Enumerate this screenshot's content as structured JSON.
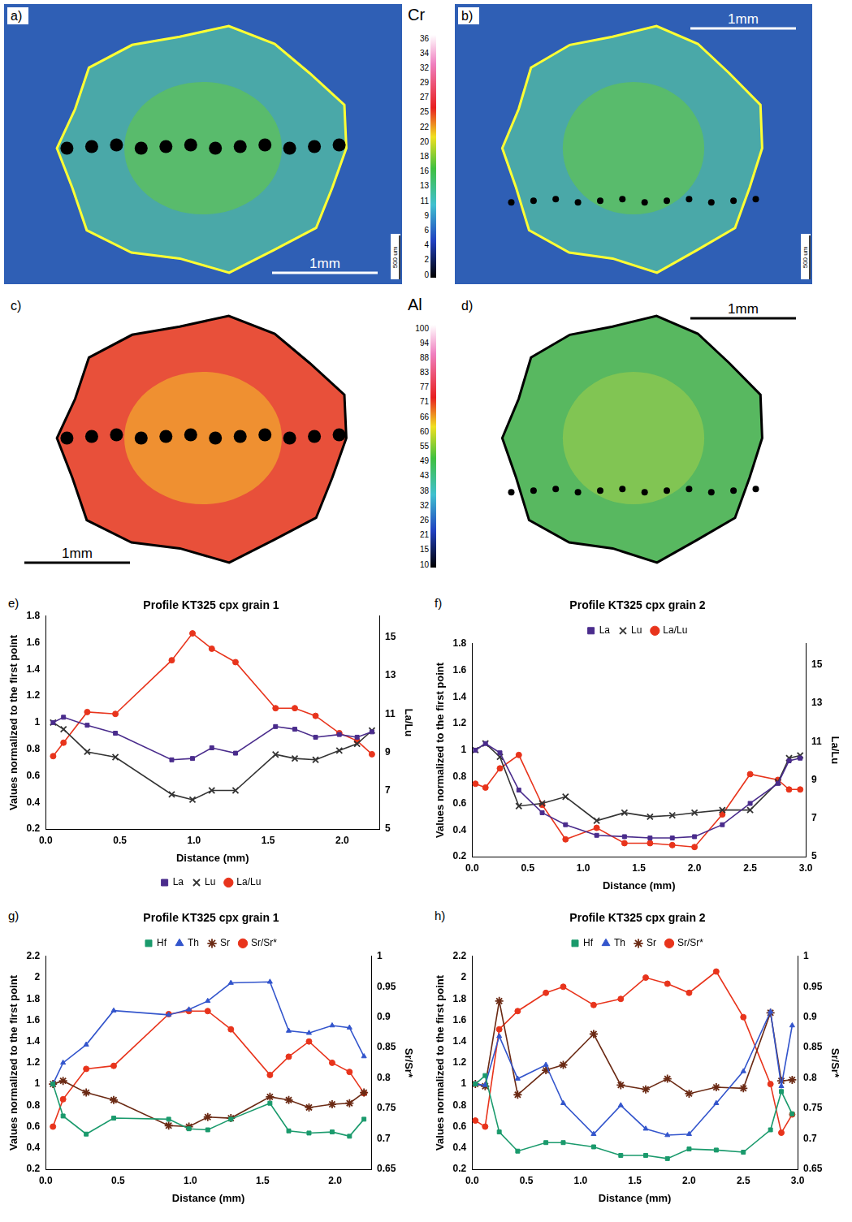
{
  "maps": {
    "panels": [
      {
        "letter": "a)",
        "scale_bar": "1mm",
        "side_label": "500 um",
        "color": "#ffff33"
      },
      {
        "letter": "b)",
        "scale_bar": "1mm",
        "side_label": "500 um",
        "color": "#ffff33"
      },
      {
        "letter": "c)",
        "scale_bar": "1mm",
        "color": "#000000"
      },
      {
        "letter": "d)",
        "scale_bar": "1mm",
        "color": "#000000"
      }
    ],
    "colorbars": [
      {
        "element": "Cr",
        "ticks": [
          36,
          34,
          32,
          29,
          27,
          25,
          22,
          20,
          18,
          16,
          13,
          11,
          9,
          6,
          4,
          2,
          0
        ]
      },
      {
        "element": "Al",
        "ticks": [
          100,
          94,
          88,
          83,
          77,
          71,
          66,
          60,
          55,
          49,
          43,
          38,
          32,
          26,
          21,
          15,
          10
        ]
      }
    ]
  },
  "chart_data": [
    {
      "type": "line",
      "letter": "e)",
      "title": "Profile KT325 cpx grain 1",
      "x_label": "Distance (mm)",
      "y_label": "Values normalized to the first point",
      "y2_label": "La/Lu",
      "x": [
        0.05,
        0.12,
        0.28,
        0.47,
        0.85,
        0.99,
        1.12,
        1.28,
        1.55,
        1.68,
        1.82,
        1.98,
        2.1,
        2.2
      ],
      "xlim": [
        0,
        2.25
      ],
      "xticks": [
        {
          "value": 0,
          "label": "0.0"
        },
        {
          "value": 0.5,
          "label": "0.5"
        },
        {
          "value": 1,
          "label": "1.0"
        },
        {
          "value": 1.5,
          "label": "1.5"
        },
        {
          "value": 2,
          "label": "2.0"
        }
      ],
      "ylim": [
        0.2,
        1.8
      ],
      "yticks": [
        0.2,
        0.4,
        0.6,
        0.8,
        1,
        1.2,
        1.4,
        1.6,
        1.8
      ],
      "y2lim": [
        5,
        16.1
      ],
      "y2ticks": [
        5,
        7,
        9,
        11,
        13,
        15
      ],
      "grid": false,
      "legend": "bottom",
      "series": [
        {
          "name": "La",
          "color": "#4a2c8c",
          "marker": "square",
          "values": [
            1.0,
            1.04,
            0.98,
            0.92,
            0.72,
            0.73,
            0.81,
            0.77,
            0.97,
            0.95,
            0.89,
            0.91,
            0.89,
            0.93
          ]
        },
        {
          "name": "Lu",
          "color": "#333333",
          "marker": "x",
          "values": [
            1.0,
            0.95,
            0.78,
            0.74,
            0.46,
            0.42,
            0.49,
            0.49,
            0.76,
            0.73,
            0.72,
            0.79,
            0.84,
            0.94
          ]
        },
        {
          "name": "La/Lu",
          "color": "#e8341c",
          "marker": "circle",
          "axis": "y2",
          "values": [
            8.8,
            9.5,
            11.1,
            11.0,
            13.8,
            15.2,
            14.4,
            13.7,
            11.3,
            11.3,
            10.9,
            10.0,
            9.6,
            8.9
          ]
        }
      ]
    },
    {
      "type": "line",
      "letter": "f)",
      "title": "Profile KT325 cpx grain 2",
      "x_label": "Distance (mm)",
      "y_label": "Values normalized to the first point",
      "y2_label": "La/Lu",
      "x": [
        0.03,
        0.12,
        0.25,
        0.42,
        0.63,
        0.84,
        1.12,
        1.37,
        1.6,
        1.8,
        2.0,
        2.25,
        2.5,
        2.75,
        2.85,
        2.95
      ],
      "xlim": [
        0,
        3.0
      ],
      "xticks": [
        {
          "value": 0,
          "label": "0.0"
        },
        {
          "value": 0.5,
          "label": "0.5"
        },
        {
          "value": 1,
          "label": "1.0"
        },
        {
          "value": 1.5,
          "label": "1.5"
        },
        {
          "value": 2,
          "label": "2.0"
        },
        {
          "value": 2.5,
          "label": "2.5"
        },
        {
          "value": 3,
          "label": "3.0"
        }
      ],
      "ylim": [
        0.2,
        1.8
      ],
      "yticks": [
        0.2,
        0.4,
        0.6,
        0.8,
        1,
        1.2,
        1.4,
        1.6,
        1.8
      ],
      "y2lim": [
        5,
        16.1
      ],
      "y2ticks": [
        5,
        7,
        9,
        11,
        13,
        15
      ],
      "grid": false,
      "legend": "top",
      "series": [
        {
          "name": "La",
          "color": "#4a2c8c",
          "marker": "square",
          "values": [
            1.0,
            1.05,
            0.98,
            0.7,
            0.53,
            0.44,
            0.36,
            0.35,
            0.34,
            0.34,
            0.35,
            0.44,
            0.6,
            0.75,
            0.92,
            0.94
          ]
        },
        {
          "name": "Lu",
          "color": "#333333",
          "marker": "x",
          "values": [
            1.0,
            1.05,
            0.95,
            0.58,
            0.6,
            0.65,
            0.47,
            0.53,
            0.5,
            0.51,
            0.53,
            0.55,
            0.55,
            0.76,
            0.94,
            0.96
          ]
        },
        {
          "name": "La/Lu",
          "color": "#e8341c",
          "marker": "circle",
          "axis": "y2",
          "values": [
            8.8,
            8.6,
            9.6,
            10.3,
            7.7,
            5.9,
            6.5,
            5.7,
            5.7,
            5.6,
            5.5,
            7.2,
            9.3,
            9.0,
            8.5,
            8.5
          ]
        }
      ]
    },
    {
      "type": "line",
      "letter": "g)",
      "title": "Profile KT325 cpx grain 1",
      "x_label": "Distance (mm)",
      "y_label": "Values normalized to the first point",
      "y2_label": "Sr/Sr*",
      "x": [
        0.05,
        0.12,
        0.28,
        0.47,
        0.85,
        0.99,
        1.12,
        1.28,
        1.55,
        1.68,
        1.82,
        1.98,
        2.1,
        2.2
      ],
      "xlim": [
        0,
        2.25
      ],
      "xticks": [
        {
          "value": 0,
          "label": "0.0"
        },
        {
          "value": 0.5,
          "label": "0.5"
        },
        {
          "value": 1,
          "label": "1.0"
        },
        {
          "value": 1.5,
          "label": "1.5"
        },
        {
          "value": 2,
          "label": "2.0"
        }
      ],
      "ylim": [
        0.2,
        2.2
      ],
      "yticks": [
        0.2,
        0.4,
        0.6,
        0.8,
        1,
        1.2,
        1.4,
        1.6,
        1.8,
        2,
        2.2
      ],
      "y2lim": [
        0.65,
        1
      ],
      "y2ticks": [
        0.65,
        0.7,
        0.75,
        0.8,
        0.85,
        0.9,
        0.95,
        1
      ],
      "grid": false,
      "legend": "top",
      "series": [
        {
          "name": "Hf",
          "color": "#1a9a6c",
          "marker": "square",
          "values": [
            1.0,
            0.7,
            0.53,
            0.68,
            0.67,
            0.58,
            0.57,
            0.67,
            0.82,
            0.56,
            0.54,
            0.55,
            0.51,
            0.67
          ]
        },
        {
          "name": "Th",
          "color": "#3355cc",
          "marker": "triangle",
          "values": [
            1.0,
            1.2,
            1.37,
            1.69,
            1.65,
            1.7,
            1.78,
            1.95,
            1.96,
            1.5,
            1.48,
            1.55,
            1.53,
            1.26
          ]
        },
        {
          "name": "Sr",
          "color": "#6b2a14",
          "marker": "star",
          "values": [
            1.0,
            1.03,
            0.92,
            0.85,
            0.61,
            0.6,
            0.69,
            0.68,
            0.88,
            0.85,
            0.78,
            0.81,
            0.82,
            0.92
          ]
        },
        {
          "name": "Sr/Sr*",
          "color": "#e8341c",
          "marker": "circle",
          "axis": "y2",
          "values": [
            0.72,
            0.765,
            0.815,
            0.82,
            0.905,
            0.91,
            0.91,
            0.88,
            0.805,
            0.835,
            0.86,
            0.825,
            0.81,
            0.775
          ]
        }
      ]
    },
    {
      "type": "line",
      "letter": "h)",
      "title": "Profile KT325 cpx grain 2",
      "x_label": "Distance (mm)",
      "y_label": "Values normalized to the first point",
      "y2_label": "Sr/Sr*",
      "x": [
        0.03,
        0.12,
        0.25,
        0.42,
        0.68,
        0.84,
        1.12,
        1.37,
        1.6,
        1.8,
        2.0,
        2.25,
        2.5,
        2.75,
        2.85,
        2.95
      ],
      "xlim": [
        0,
        3.0
      ],
      "xticks": [
        {
          "value": 0,
          "label": "0.0"
        },
        {
          "value": 0.5,
          "label": "0.5"
        },
        {
          "value": 1,
          "label": "1.0"
        },
        {
          "value": 1.5,
          "label": "1.5"
        },
        {
          "value": 2,
          "label": "2.0"
        },
        {
          "value": 2.5,
          "label": "2.5"
        },
        {
          "value": 3,
          "label": "3.0"
        }
      ],
      "ylim": [
        0.2,
        2.2
      ],
      "yticks": [
        0.2,
        0.4,
        0.6,
        0.8,
        1,
        1.2,
        1.4,
        1.6,
        1.8,
        2,
        2.2
      ],
      "y2lim": [
        0.65,
        1
      ],
      "y2ticks": [
        0.65,
        0.7,
        0.75,
        0.8,
        0.85,
        0.9,
        0.95,
        1
      ],
      "grid": false,
      "legend": "top",
      "series": [
        {
          "name": "Hf",
          "color": "#1a9a6c",
          "marker": "square",
          "values": [
            1.0,
            1.08,
            0.55,
            0.37,
            0.45,
            0.45,
            0.41,
            0.33,
            0.33,
            0.3,
            0.39,
            0.38,
            0.36,
            0.57,
            0.93,
            0.72
          ]
        },
        {
          "name": "Th",
          "color": "#3355cc",
          "marker": "triangle",
          "values": [
            1.0,
            0.99,
            1.45,
            1.05,
            1.18,
            0.82,
            0.53,
            0.8,
            0.58,
            0.52,
            0.53,
            0.82,
            1.12,
            1.68,
            0.98,
            1.55
          ]
        },
        {
          "name": "Sr",
          "color": "#6b2a14",
          "marker": "star",
          "values": [
            1.0,
            0.98,
            1.78,
            0.9,
            1.13,
            1.18,
            1.47,
            0.99,
            0.95,
            1.05,
            0.91,
            0.97,
            0.96,
            1.67,
            1.03,
            1.04
          ]
        },
        {
          "name": "Sr/Sr*",
          "color": "#e8341c",
          "marker": "circle",
          "axis": "y2",
          "values": [
            0.73,
            0.72,
            0.88,
            0.91,
            0.94,
            0.95,
            0.92,
            0.93,
            0.965,
            0.955,
            0.94,
            0.975,
            0.9,
            0.79,
            0.71,
            0.74
          ]
        }
      ]
    }
  ]
}
